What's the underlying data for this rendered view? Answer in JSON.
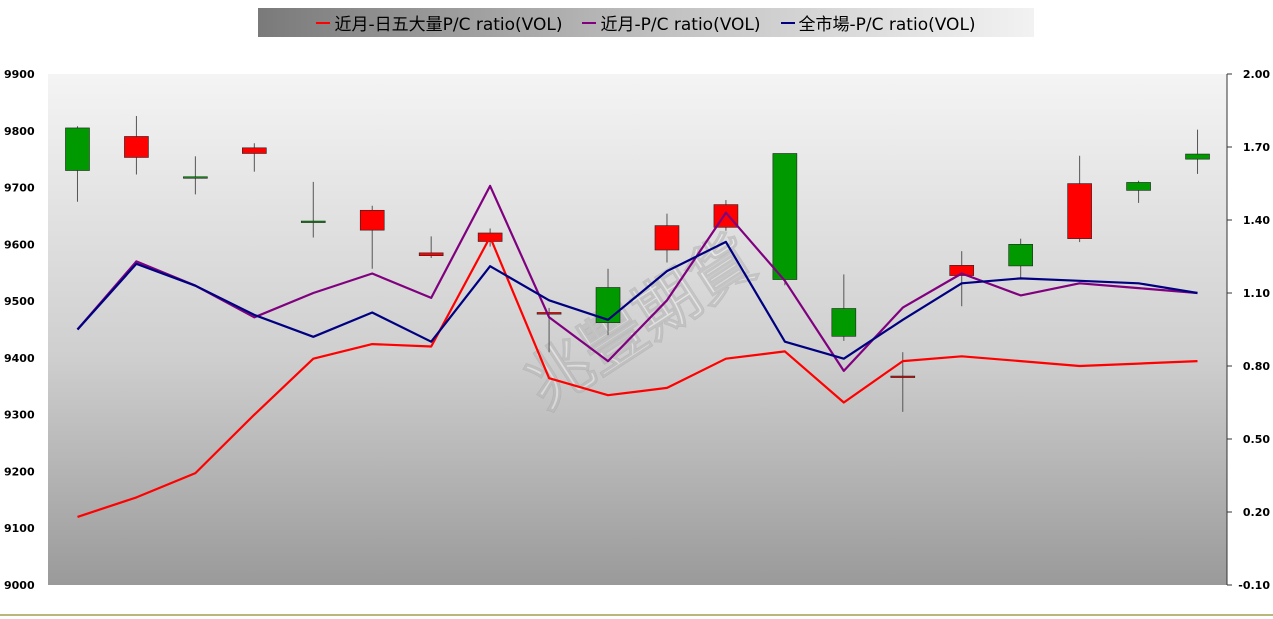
{
  "legend": [
    {
      "label": "近月-日五大量P/C ratio(VOL)",
      "color": "#ff0000"
    },
    {
      "label": "近月-P/C ratio(VOL)",
      "color": "#800080"
    },
    {
      "label": "全市場-P/C ratio(VOL)",
      "color": "#000080"
    }
  ],
  "watermark": "兆豐期貨",
  "colors": {
    "up": "#ff0000",
    "down": "#009900",
    "wick": "#555555"
  },
  "chart_data": {
    "type": "line",
    "left_axis": {
      "ylim": [
        9000,
        9900
      ],
      "ticks": [
        "9000",
        "9100",
        "9200",
        "9300",
        "9400",
        "9500",
        "9600",
        "9700",
        "9800",
        "9900"
      ]
    },
    "right_axis": {
      "ylim": [
        -0.1,
        2.0
      ],
      "ticks": [
        "-0.10",
        "0.20",
        "0.50",
        "0.80",
        "1.10",
        "1.40",
        "1.70",
        "2.00"
      ]
    },
    "candles": [
      {
        "open": 9730,
        "high": 9808,
        "low": 9675,
        "close": 9805
      },
      {
        "open": 9790,
        "high": 9826,
        "low": 9723,
        "close": 9753
      },
      {
        "open": 9718,
        "high": 9755,
        "low": 9688,
        "close": 9719
      },
      {
        "open": 9770,
        "high": 9778,
        "low": 9728,
        "close": 9760
      },
      {
        "open": 9640,
        "high": 9710,
        "low": 9612,
        "close": 9641
      },
      {
        "open": 9660,
        "high": 9668,
        "low": 9557,
        "close": 9625
      },
      {
        "open": 9585,
        "high": 9614,
        "low": 9576,
        "close": 9580
      },
      {
        "open": 9620,
        "high": 9628,
        "low": 9596,
        "close": 9605
      },
      {
        "open": 9480,
        "high": 9488,
        "low": 9410,
        "close": 9477
      },
      {
        "open": 9462,
        "high": 9557,
        "low": 9440,
        "close": 9524
      },
      {
        "open": 9633,
        "high": 9654,
        "low": 9568,
        "close": 9590
      },
      {
        "open": 9670,
        "high": 9678,
        "low": 9624,
        "close": 9630
      },
      {
        "open": 9538,
        "high": 9760,
        "low": 9528,
        "close": 9760
      },
      {
        "open": 9438,
        "high": 9547,
        "low": 9430,
        "close": 9487
      },
      {
        "open": 9368,
        "high": 9410,
        "low": 9305,
        "close": 9367
      },
      {
        "open": 9563,
        "high": 9588,
        "low": 9491,
        "close": 9545
      },
      {
        "open": 9562,
        "high": 9610,
        "low": 9540,
        "close": 9600
      },
      {
        "open": 9707,
        "high": 9756,
        "low": 9604,
        "close": 9610
      },
      {
        "open": 9695,
        "high": 9712,
        "low": 9673,
        "close": 9709
      },
      {
        "open": 9750,
        "high": 9802,
        "low": 9724,
        "close": 9759
      }
    ],
    "series": [
      {
        "name": "近月-日五大量P/C ratio(VOL)",
        "axis": "right",
        "color": "#ff0000",
        "values": [
          0.18,
          0.26,
          0.36,
          0.6,
          0.83,
          0.89,
          0.88,
          1.33,
          0.75,
          0.68,
          0.71,
          0.83,
          0.86,
          0.65,
          0.82,
          0.84,
          0.82,
          0.8,
          0.81,
          0.82
        ]
      },
      {
        "name": "近月-P/C ratio(VOL)",
        "axis": "right",
        "color": "#800080",
        "values": [
          0.95,
          1.23,
          1.13,
          1.0,
          1.1,
          1.18,
          1.08,
          1.54,
          1.0,
          0.82,
          1.07,
          1.43,
          1.15,
          0.78,
          1.04,
          1.18,
          1.09,
          1.14,
          1.12,
          1.1
        ]
      },
      {
        "name": "全市場-P/C ratio(VOL)",
        "axis": "right",
        "color": "#000080",
        "values": [
          0.95,
          1.22,
          1.13,
          1.01,
          0.92,
          1.02,
          0.9,
          1.21,
          1.07,
          0.99,
          1.19,
          1.31,
          0.9,
          0.83,
          0.99,
          1.14,
          1.16,
          1.15,
          1.14,
          1.1
        ]
      }
    ]
  }
}
